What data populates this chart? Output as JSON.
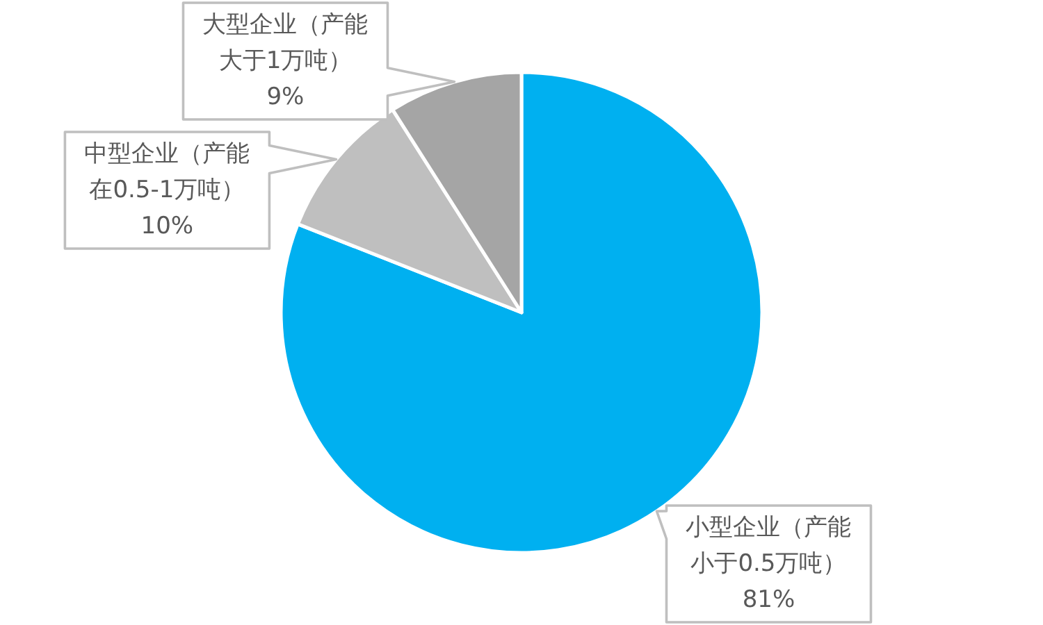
{
  "chart_data": {
    "type": "pie",
    "categories": [
      "小型企业（产能小于0.5万吨）",
      "中型企业（产能在0.5-1万吨）",
      "大型企业（产能大于1万吨）"
    ],
    "values": [
      81,
      10,
      9
    ],
    "colors": [
      "#00b0f0",
      "#bfbfbf",
      "#a5a5a5"
    ],
    "value_labels": [
      "81%",
      "10%",
      "9%"
    ]
  }
}
